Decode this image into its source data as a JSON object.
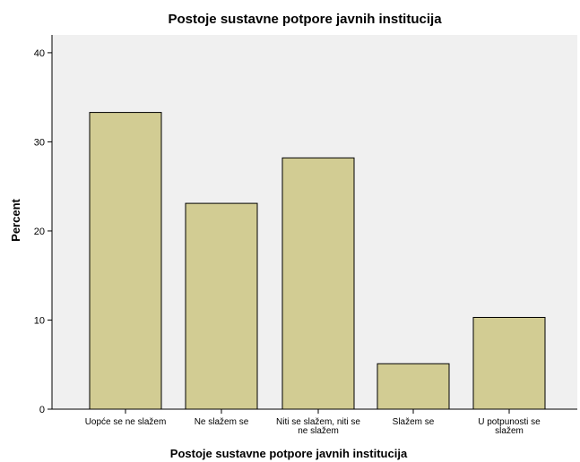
{
  "chart_data": {
    "type": "bar",
    "title": "Postoje sustavne potpore  javnih institucija",
    "xlabel": "Postoje sustavne potpore  javnih institucija",
    "ylabel": "Percent",
    "categories": [
      [
        "Uopće se ne slažem"
      ],
      [
        "Ne slažem se"
      ],
      [
        "Niti se slažem, niti se",
        "ne slažem"
      ],
      [
        "Slažem se"
      ],
      [
        "U potpunosti se",
        "slažem"
      ]
    ],
    "values": [
      33.3,
      23.1,
      28.2,
      5.1,
      10.3
    ],
    "ylim": [
      0,
      42
    ],
    "yticks": [
      0,
      10,
      20,
      30,
      40
    ],
    "grid": false,
    "colors": {
      "bar_fill": "#d2cc93",
      "bar_stroke": "#000000",
      "plot_background": "#f0f0f0"
    }
  }
}
